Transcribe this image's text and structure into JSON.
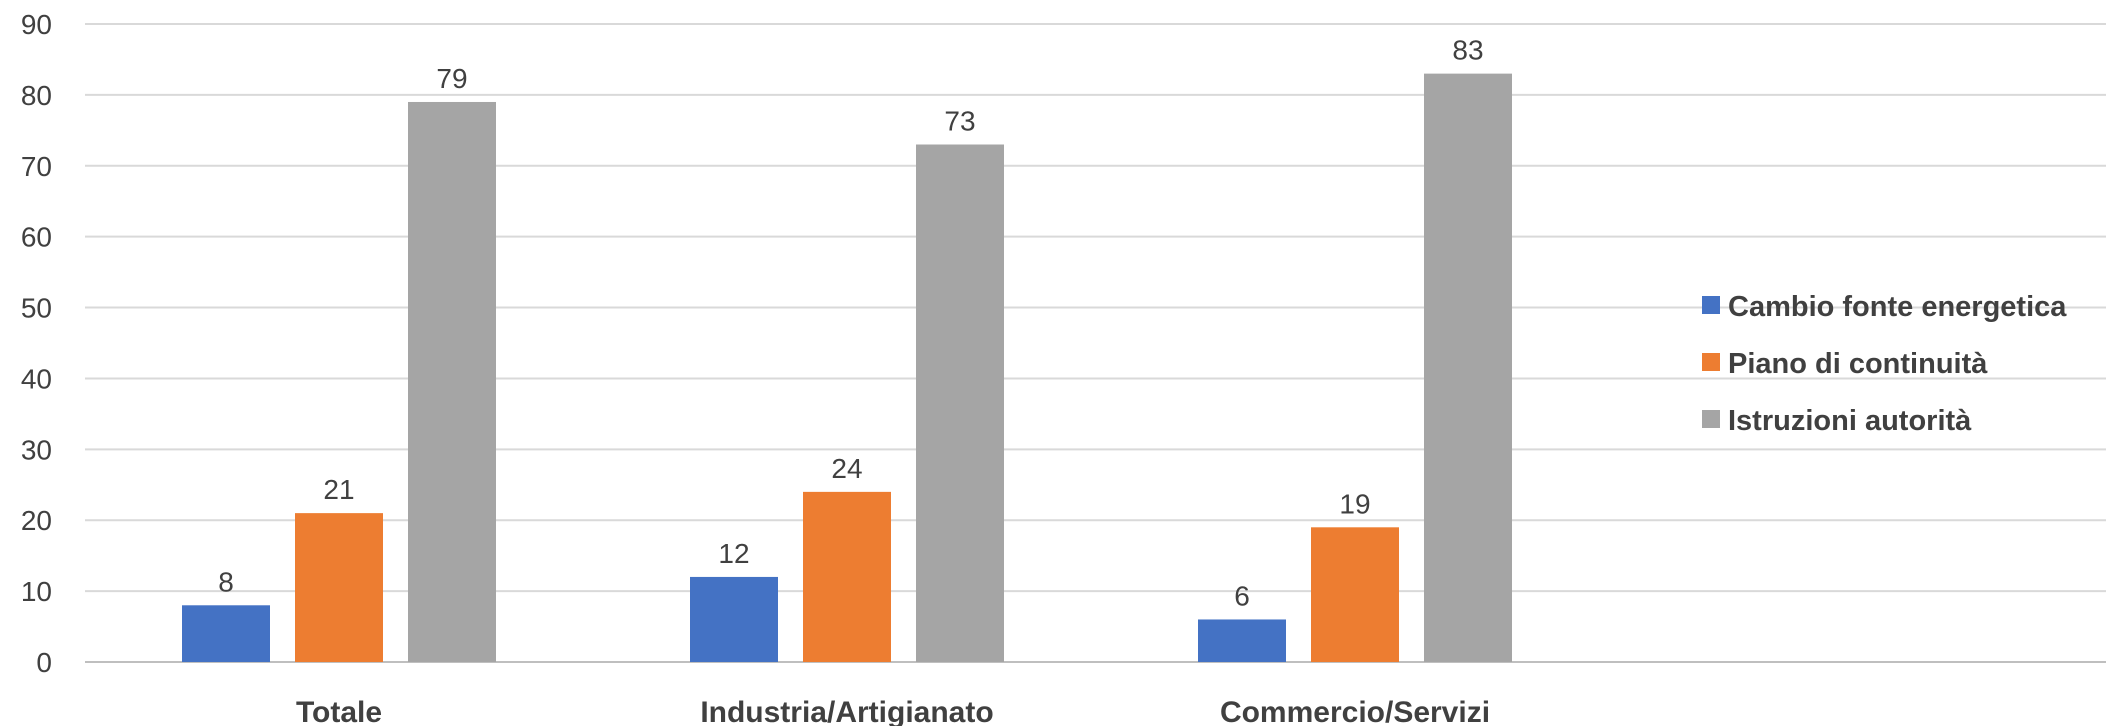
{
  "chart_data": {
    "type": "bar",
    "categories": [
      "Totale",
      "Industria/Artigianato",
      "Commercio/Servizi"
    ],
    "series": [
      {
        "name": "Cambio fonte energetica",
        "color": "#4472C4",
        "values": [
          8,
          12,
          6
        ]
      },
      {
        "name": "Piano di continuità",
        "color": "#ED7D31",
        "values": [
          21,
          24,
          19
        ]
      },
      {
        "name": "Istruzioni autorità",
        "color": "#A5A5A5",
        "values": [
          79,
          73,
          83
        ]
      }
    ],
    "ylim": [
      0,
      90
    ],
    "yticks": [
      0,
      10,
      20,
      30,
      40,
      50,
      60,
      70,
      80,
      90
    ],
    "grid": true,
    "legend_position": "right",
    "data_labels": true
  }
}
